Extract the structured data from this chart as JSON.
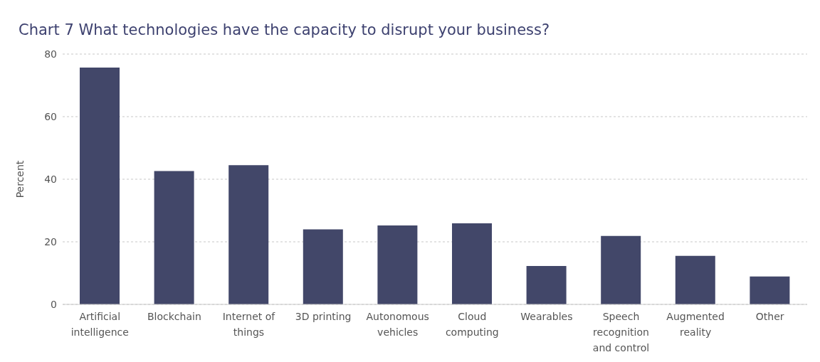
{
  "chart_data": {
    "type": "bar",
    "title": "Chart 7 What technologies have the capacity to disrupt your business?",
    "ylabel": "Percent",
    "categories": [
      "Artificial intelligence",
      "Blockchain",
      "Internet of things",
      "3D printing",
      "Autonomous vehicles",
      "Cloud computing",
      "Wearables",
      "Speech recognition and control",
      "Augmented reality",
      "Other"
    ],
    "values": [
      75.7,
      42.6,
      44.5,
      24.0,
      25.2,
      25.9,
      12.3,
      21.9,
      15.5,
      8.9
    ],
    "color": "#424769",
    "ylim": [
      0,
      80
    ],
    "yticks": [
      0,
      20,
      40,
      60,
      80
    ],
    "grid": "y"
  }
}
